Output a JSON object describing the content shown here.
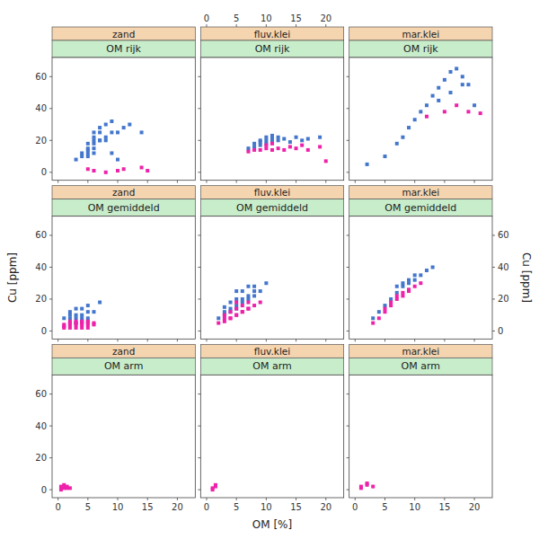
{
  "chart_data": [
    {
      "type": "scatter",
      "title": "OM rijk",
      "subtitle": "zand",
      "xlim": [
        -1,
        23
      ],
      "ylim": [
        -5,
        72
      ],
      "xticks": [
        0,
        5,
        10,
        15,
        20
      ],
      "yticks": [
        0,
        20,
        40,
        60
      ],
      "tick_labels": "y",
      "series": [
        {
          "color": "#4477cc",
          "marker": "square",
          "x": [
            3,
            4,
            4,
            5,
            5,
            5,
            5,
            6,
            6,
            6,
            6,
            6,
            7,
            7,
            7,
            8,
            8,
            9,
            9,
            10,
            11,
            12,
            14,
            5,
            6,
            7,
            8,
            9,
            10
          ],
          "values": [
            8,
            10,
            12,
            10,
            12,
            15,
            18,
            12,
            15,
            20,
            22,
            18,
            20,
            25,
            28,
            22,
            30,
            25,
            32,
            25,
            28,
            30,
            25,
            14,
            25,
            20,
            20,
            12,
            8
          ]
        },
        {
          "color": "#ee22aa",
          "marker": "square",
          "x": [
            5,
            6,
            8,
            10,
            11,
            14,
            15
          ],
          "values": [
            2,
            1,
            0,
            1,
            2,
            3,
            1
          ]
        }
      ]
    },
    {
      "type": "scatter",
      "title": "OM rijk",
      "subtitle": "fluv.klei",
      "xlim": [
        -1,
        23
      ],
      "ylim": [
        -5,
        72
      ],
      "xticks": [
        0,
        5,
        10,
        15,
        20
      ],
      "yticks": [
        0,
        20,
        40,
        60
      ],
      "tick_labels": "x",
      "series": [
        {
          "color": "#4477cc",
          "marker": "square",
          "x": [
            7,
            8,
            8,
            9,
            9,
            9,
            10,
            10,
            10,
            11,
            11,
            11,
            12,
            12,
            13,
            14,
            15,
            16,
            17,
            19
          ],
          "values": [
            15,
            16,
            18,
            17,
            19,
            20,
            18,
            20,
            22,
            19,
            21,
            23,
            20,
            22,
            21,
            19,
            22,
            20,
            21,
            22
          ]
        },
        {
          "color": "#ee22aa",
          "marker": "square",
          "x": [
            7,
            8,
            9,
            10,
            10,
            11,
            11,
            12,
            13,
            14,
            15,
            16,
            17,
            19,
            20
          ],
          "values": [
            13,
            14,
            14,
            15,
            17,
            14,
            18,
            15,
            14,
            16,
            15,
            17,
            14,
            16,
            7
          ]
        }
      ]
    },
    {
      "type": "scatter",
      "title": "OM rijk",
      "subtitle": "mar.klei",
      "xlim": [
        -1,
        23
      ],
      "ylim": [
        -5,
        72
      ],
      "xticks": [
        0,
        5,
        10,
        15,
        20
      ],
      "yticks": [
        0,
        20,
        40,
        60
      ],
      "tick_labels": false,
      "series": [
        {
          "color": "#4477cc",
          "marker": "square",
          "x": [
            2,
            5,
            7,
            8,
            9,
            10,
            11,
            12,
            13,
            14,
            15,
            16,
            17,
            18,
            19,
            20,
            14,
            16,
            18
          ],
          "values": [
            5,
            10,
            18,
            22,
            28,
            33,
            38,
            42,
            48,
            53,
            58,
            63,
            65,
            60,
            55,
            42,
            45,
            50,
            55
          ]
        },
        {
          "color": "#ee22aa",
          "marker": "square",
          "x": [
            12,
            15,
            17,
            19,
            21
          ],
          "values": [
            35,
            38,
            42,
            38,
            37
          ]
        }
      ]
    },
    {
      "type": "scatter",
      "title": "OM gemiddeld",
      "subtitle": "zand",
      "ylabel": "Cu [ppm]",
      "xlim": [
        -1,
        23
      ],
      "ylim": [
        -5,
        72
      ],
      "xticks": [
        0,
        5,
        10,
        15,
        20
      ],
      "yticks": [
        0,
        20,
        40,
        60
      ],
      "tick_labels": "y",
      "series": [
        {
          "color": "#4477cc",
          "marker": "square",
          "x": [
            1,
            2,
            2,
            2,
            3,
            3,
            3,
            4,
            4,
            4,
            5,
            5,
            5,
            6,
            7,
            2,
            3,
            4,
            5
          ],
          "values": [
            8,
            5,
            8,
            12,
            5,
            10,
            14,
            6,
            10,
            14,
            8,
            12,
            16,
            12,
            18,
            10,
            8,
            8,
            6
          ]
        },
        {
          "color": "#ee22aa",
          "marker": "square",
          "x": [
            1,
            1,
            2,
            2,
            2,
            3,
            3,
            3,
            4,
            4,
            4,
            5,
            5,
            5,
            6,
            1,
            2,
            3,
            4,
            5,
            6
          ],
          "values": [
            2,
            4,
            2,
            4,
            6,
            2,
            4,
            6,
            2,
            4,
            6,
            2,
            4,
            6,
            4,
            3,
            5,
            5,
            5,
            5,
            5
          ]
        }
      ]
    },
    {
      "type": "scatter",
      "title": "OM gemiddeld",
      "subtitle": "fluv.klei",
      "xlim": [
        -1,
        23
      ],
      "ylim": [
        -5,
        72
      ],
      "xticks": [
        0,
        5,
        10,
        15,
        20
      ],
      "yticks": [
        0,
        20,
        40,
        60
      ],
      "tick_labels": false,
      "series": [
        {
          "color": "#4477cc",
          "marker": "square",
          "x": [
            2,
            3,
            3,
            4,
            4,
            5,
            5,
            5,
            6,
            6,
            7,
            7,
            8,
            8,
            9,
            10,
            3,
            4,
            5,
            6,
            7,
            8
          ],
          "values": [
            8,
            10,
            15,
            12,
            18,
            14,
            20,
            25,
            18,
            25,
            20,
            28,
            22,
            28,
            25,
            30,
            12,
            14,
            16,
            20,
            22,
            25
          ]
        },
        {
          "color": "#ee22aa",
          "marker": "square",
          "x": [
            2,
            3,
            3,
            4,
            4,
            5,
            5,
            5,
            6,
            6,
            7,
            7,
            8,
            9,
            3,
            4,
            5,
            6,
            7
          ],
          "values": [
            5,
            8,
            10,
            8,
            12,
            10,
            14,
            18,
            12,
            16,
            14,
            18,
            16,
            18,
            6,
            8,
            10,
            12,
            14
          ]
        }
      ]
    },
    {
      "type": "scatter",
      "title": "OM gemiddeld",
      "subtitle": "mar.klei",
      "ylabel": "Cu [ppm]",
      "xlim": [
        -1,
        23
      ],
      "ylim": [
        -5,
        72
      ],
      "xticks": [
        0,
        5,
        10,
        15,
        20
      ],
      "yticks": [
        0,
        20,
        40,
        60
      ],
      "tick_labels": "y",
      "series": [
        {
          "color": "#4477cc",
          "marker": "square",
          "x": [
            3,
            4,
            5,
            6,
            7,
            8,
            9,
            10,
            11,
            12,
            13,
            7,
            8,
            9,
            10
          ],
          "values": [
            8,
            12,
            16,
            20,
            24,
            28,
            30,
            32,
            35,
            38,
            40,
            28,
            30,
            32,
            35
          ]
        },
        {
          "color": "#ee22aa",
          "marker": "square",
          "x": [
            3,
            4,
            5,
            6,
            7,
            8,
            9,
            10,
            11,
            5,
            6,
            7,
            8,
            9
          ],
          "values": [
            5,
            8,
            12,
            16,
            20,
            22,
            25,
            28,
            30,
            14,
            18,
            22,
            24,
            26
          ]
        }
      ]
    },
    {
      "type": "scatter",
      "title": "OM arm",
      "subtitle": "zand",
      "xlim": [
        -1,
        23
      ],
      "ylim": [
        -5,
        72
      ],
      "xticks": [
        0,
        5,
        10,
        15,
        20
      ],
      "yticks": [
        0,
        20,
        40,
        60
      ],
      "series": [
        {
          "color": "#ee22aa",
          "marker": "square",
          "x": [
            0.5,
            0.5,
            1,
            1,
            1.5,
            2,
            0.5,
            1,
            1.5
          ],
          "values": [
            0,
            2,
            1,
            3,
            2,
            1,
            1,
            2,
            1
          ]
        }
      ]
    },
    {
      "type": "scatter",
      "title": "OM arm",
      "subtitle": "fluv.klei",
      "xlabel": "OM [%]",
      "xlim": [
        -1,
        23
      ],
      "ylim": [
        -5,
        72
      ],
      "xticks": [
        0,
        5,
        10,
        15,
        20
      ],
      "yticks": [
        0,
        20,
        40,
        60
      ],
      "tick_labels": "x",
      "series": [
        {
          "color": "#ee22aa",
          "marker": "square",
          "x": [
            1,
            1.5,
            1,
            1.5
          ],
          "values": [
            0,
            2,
            1,
            3
          ]
        }
      ]
    },
    {
      "type": "scatter",
      "title": "OM arm",
      "subtitle": "mar.klei",
      "xlim": [
        -1,
        23
      ],
      "ylim": [
        -5,
        72
      ],
      "xticks": [
        0,
        5,
        10,
        15,
        20
      ],
      "yticks": [
        0,
        20,
        40,
        60
      ],
      "tick_labels": "x",
      "series": [
        {
          "color": "#ee22aa",
          "marker": "square",
          "x": [
            1,
            2,
            1,
            2,
            3
          ],
          "values": [
            1,
            3,
            2,
            4,
            2
          ]
        }
      ]
    }
  ]
}
